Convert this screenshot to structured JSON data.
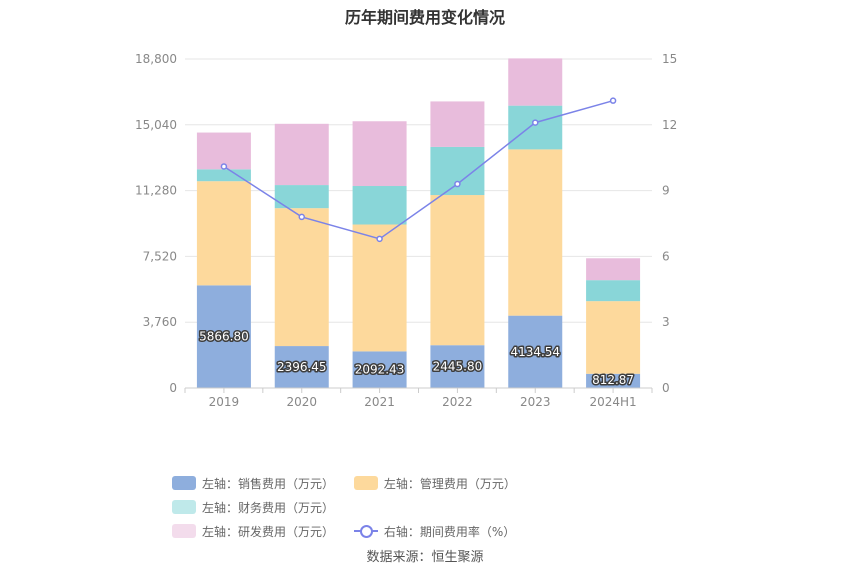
{
  "title": "历年期间费用变化情况",
  "source": "数据来源：恒生聚源",
  "colors": {
    "sales": "#8eaedd",
    "admin": "#fdd99c",
    "finance": "#89d6d8",
    "rd": "#e8bcdc",
    "rate_line": "#7b83e8"
  },
  "chart_data": {
    "type": "bar",
    "stacked": true,
    "categories": [
      "2019",
      "2020",
      "2021",
      "2022",
      "2023",
      "2024H1"
    ],
    "left_axis": {
      "ylim": [
        0,
        18800
      ],
      "ticks": [
        "0",
        "3,760",
        "7,520",
        "11,280",
        "15,040",
        "18,800"
      ]
    },
    "right_axis": {
      "ylim": [
        0,
        15
      ],
      "ticks": [
        "0",
        "3",
        "6",
        "9",
        "12",
        "15"
      ]
    },
    "series": [
      {
        "name": "左轴：销售费用（万元）",
        "key": "sales",
        "axis": "left",
        "type": "bar",
        "values": [
          5866.8,
          2396.45,
          2092.43,
          2445.8,
          4134.54,
          812.87
        ],
        "labels": [
          "5866.80",
          "2396.45",
          "2092.43",
          "2445.80",
          "4134.54",
          "812.87"
        ]
      },
      {
        "name": "左轴：管理费用（万元）",
        "key": "admin",
        "axis": "left",
        "type": "bar",
        "values": [
          5950,
          7880,
          7250,
          8580,
          9500,
          4150
        ]
      },
      {
        "name": "左轴：财务费用（万元）",
        "key": "finance",
        "axis": "left",
        "type": "bar",
        "values": [
          680,
          1320,
          2200,
          2750,
          2500,
          1200
        ]
      },
      {
        "name": "左轴：研发费用（万元）",
        "key": "rd",
        "axis": "left",
        "type": "bar",
        "values": [
          2100,
          3500,
          3700,
          2600,
          2700,
          1250
        ]
      },
      {
        "name": "右轴：期间费用率（%）",
        "key": "rate",
        "axis": "right",
        "type": "line",
        "values": [
          10.1,
          7.8,
          6.8,
          9.3,
          12.1,
          13.1
        ]
      }
    ],
    "grid": true,
    "legend_position": "bottom"
  }
}
